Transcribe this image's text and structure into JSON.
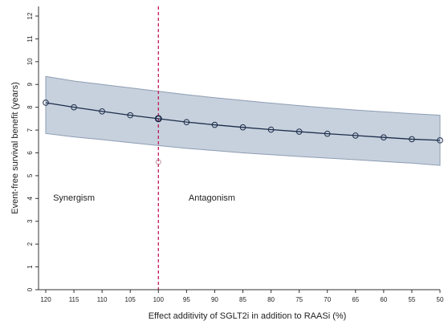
{
  "chart_data": {
    "type": "line",
    "xlabel": "Effect additivity of SGLT2i in addition to RAASi (%)",
    "ylabel": "Event-free survival benefit (years)",
    "x_reversed": true,
    "xlim": [
      120,
      50
    ],
    "ylim": [
      0,
      12
    ],
    "x_ticks": [
      120,
      115,
      110,
      105,
      100,
      95,
      90,
      85,
      80,
      75,
      70,
      65,
      60,
      55,
      50
    ],
    "y_ticks": [
      0,
      1,
      2,
      3,
      4,
      5,
      6,
      7,
      8,
      9,
      10,
      11,
      12
    ],
    "grid": false,
    "series": [
      {
        "x": [
          120,
          115,
          110,
          105,
          100,
          95,
          90,
          85,
          80,
          75,
          70,
          65,
          60,
          55,
          50
        ],
        "values": [
          8.2,
          8.0,
          7.82,
          7.65,
          7.5,
          7.35,
          7.23,
          7.12,
          7.02,
          6.93,
          6.84,
          6.76,
          6.68,
          6.6,
          6.55
        ],
        "ci_upper": [
          9.35,
          9.15,
          9.0,
          8.85,
          8.7,
          8.55,
          8.42,
          8.3,
          8.18,
          8.07,
          7.97,
          7.88,
          7.8,
          7.72,
          7.65
        ],
        "ci_lower": [
          6.85,
          6.7,
          6.58,
          6.45,
          6.32,
          6.2,
          6.1,
          6.0,
          5.92,
          5.84,
          5.77,
          5.7,
          5.62,
          5.55,
          5.45
        ]
      }
    ],
    "reference_line": {
      "x": 100,
      "color": "#c2185b",
      "style": "dashed"
    },
    "reference_marker": {
      "x": 100,
      "y": 5.6
    },
    "highlight_point": {
      "x": 100,
      "y": 7.5
    },
    "annotations": [
      {
        "text": "Synergism",
        "x": 115,
        "y": 3.9
      },
      {
        "text": "Antagonism",
        "x": 90.5,
        "y": 3.9
      }
    ],
    "colors": {
      "band": "#c7d1dd",
      "band_edge": "#8d9db3",
      "line": "#1c2d4a",
      "marker": "#1c2d4a"
    }
  }
}
